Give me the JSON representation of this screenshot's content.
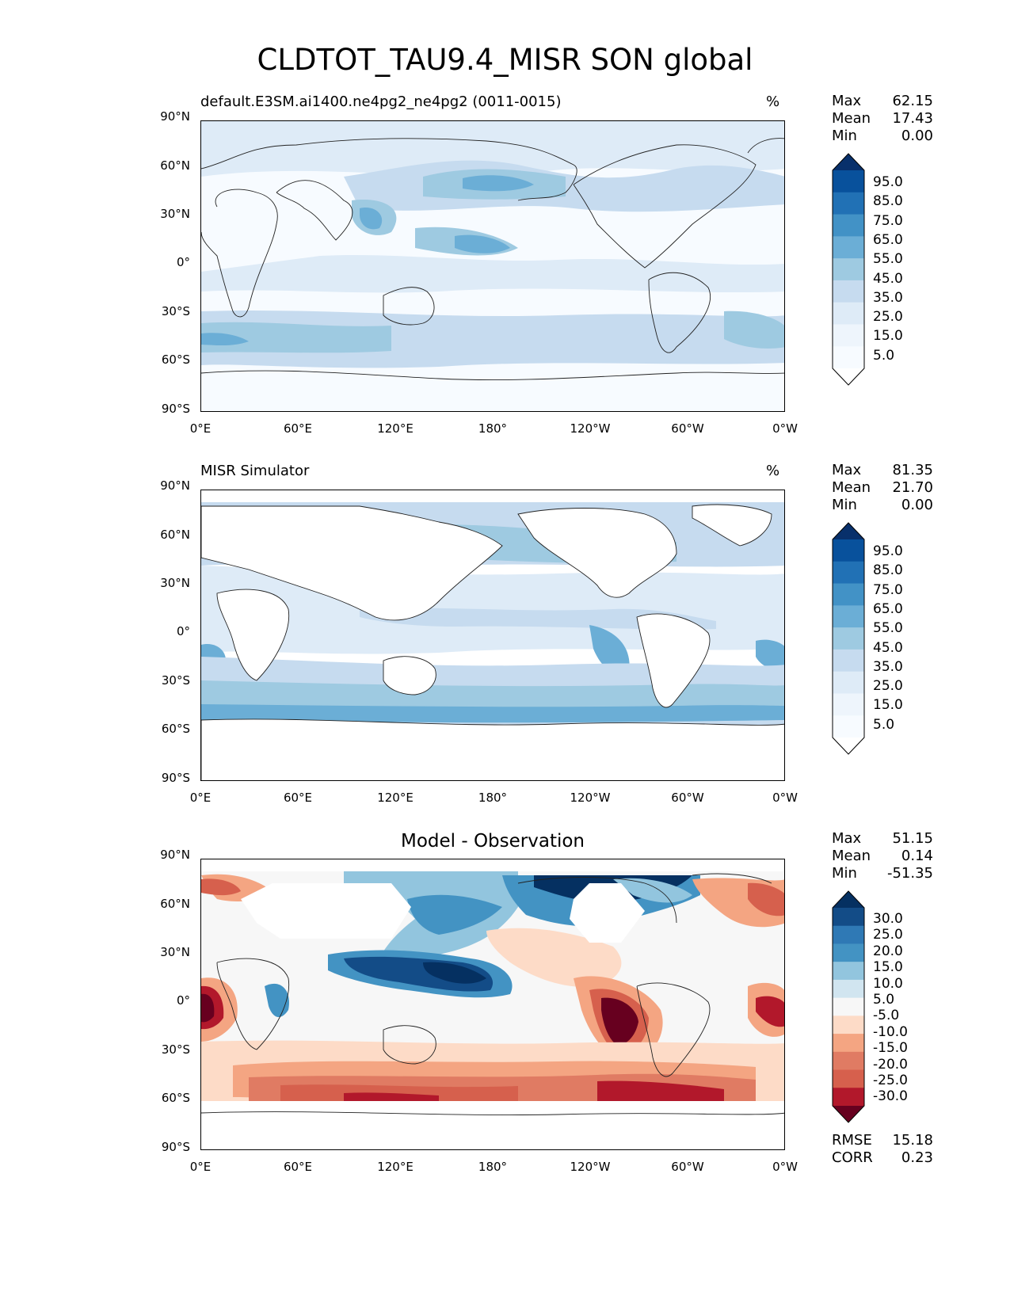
{
  "figure": {
    "title": "CLDTOT_TAU9.4_MISR SON global"
  },
  "axes": {
    "lat_ticks": [
      "90°N",
      "60°N",
      "30°N",
      "0°",
      "30°S",
      "60°S",
      "90°S"
    ],
    "lon_ticks": [
      "0°E",
      "60°E",
      "120°E",
      "180°",
      "120°W",
      "60°W",
      "0°W"
    ]
  },
  "panels": [
    {
      "id": "test",
      "left_title": "default.E3SM.ai1400.ne4pg2_ne4pg2 (0011-0015)",
      "right_title": "%",
      "center_title": "",
      "stats": [
        {
          "label": "Max",
          "value": "62.15"
        },
        {
          "label": "Mean",
          "value": "17.43"
        },
        {
          "label": "Min",
          "value": "0.00"
        }
      ],
      "colorbar_labels": [
        "95.0",
        "85.0",
        "75.0",
        "65.0",
        "55.0",
        "45.0",
        "35.0",
        "25.0",
        "15.0",
        "5.0"
      ],
      "colorbar_colors": [
        "#08306b",
        "#08519c",
        "#2171b5",
        "#4292c6",
        "#6baed6",
        "#9ecae1",
        "#c6dbef",
        "#deebf7",
        "#eef5fc",
        "#f7fbff",
        "#ffffff"
      ]
    },
    {
      "id": "reference",
      "left_title": "MISR Simulator",
      "right_title": "%",
      "center_title": "",
      "stats": [
        {
          "label": "Max",
          "value": "81.35"
        },
        {
          "label": "Mean",
          "value": "21.70"
        },
        {
          "label": "Min",
          "value": "0.00"
        }
      ],
      "colorbar_labels": [
        "95.0",
        "85.0",
        "75.0",
        "65.0",
        "55.0",
        "45.0",
        "35.0",
        "25.0",
        "15.0",
        "5.0"
      ],
      "colorbar_colors": [
        "#08306b",
        "#08519c",
        "#2171b5",
        "#4292c6",
        "#6baed6",
        "#9ecae1",
        "#c6dbef",
        "#deebf7",
        "#eef5fc",
        "#f7fbff",
        "#ffffff"
      ]
    },
    {
      "id": "diff",
      "left_title": "",
      "right_title": "",
      "center_title": "Model - Observation",
      "stats": [
        {
          "label": "Max",
          "value": "51.15"
        },
        {
          "label": "Mean",
          "value": "0.14"
        },
        {
          "label": "Min",
          "value": "-51.35"
        }
      ],
      "extra_stats": [
        {
          "label": "RMSE",
          "value": "15.18"
        },
        {
          "label": "CORR",
          "value": "0.23"
        }
      ],
      "colorbar_labels": [
        "30.0",
        "25.0",
        "20.0",
        "15.0",
        "10.0",
        "5.0",
        "-5.0",
        "-10.0",
        "-15.0",
        "-20.0",
        "-25.0",
        "-30.0"
      ],
      "colorbar_colors": [
        "#053061",
        "#134c87",
        "#2f79b5",
        "#4393c3",
        "#92c5de",
        "#d1e5f0",
        "#f7f7f7",
        "#fddbc7",
        "#f4a582",
        "#e07b63",
        "#d6604d",
        "#b2182b",
        "#67001f"
      ]
    }
  ]
}
